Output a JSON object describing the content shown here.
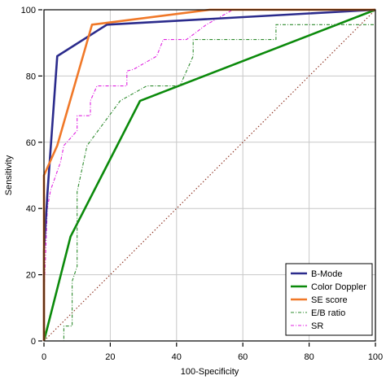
{
  "chart_data": {
    "type": "line",
    "title": "",
    "xlabel": "100-Specificity",
    "ylabel": "Sensitivity",
    "xlim": [
      0,
      100
    ],
    "ylim": [
      0,
      100
    ],
    "xticks": [
      0,
      20,
      40,
      60,
      80,
      100
    ],
    "yticks": [
      0,
      20,
      40,
      60,
      80,
      100
    ],
    "grid": true,
    "legend_position": "bottom-right",
    "series": [
      {
        "name": "B-Mode",
        "color": "#2b2b8c",
        "style": "solid",
        "points": [
          [
            0,
            0
          ],
          [
            0,
            27
          ],
          [
            1,
            44
          ],
          [
            4,
            86
          ],
          [
            19,
            95.5
          ],
          [
            100,
            100
          ]
        ]
      },
      {
        "name": "Color Doppler",
        "color": "#0b8a0b",
        "style": "solid",
        "points": [
          [
            0,
            0
          ],
          [
            8,
            31.5
          ],
          [
            29,
            72.5
          ],
          [
            100,
            100
          ]
        ]
      },
      {
        "name": "SE score",
        "color": "#f07828",
        "style": "solid",
        "points": [
          [
            0,
            0
          ],
          [
            0,
            50
          ],
          [
            4,
            59
          ],
          [
            14.5,
            95.5
          ],
          [
            50,
            100
          ],
          [
            100,
            100
          ]
        ]
      },
      {
        "name": "E/B ratio",
        "color": "#2e8b2e",
        "style": "dashdot",
        "points": [
          [
            0,
            0
          ],
          [
            6,
            0
          ],
          [
            6,
            4.5
          ],
          [
            8.5,
            4.5
          ],
          [
            8.5,
            18
          ],
          [
            10,
            22.5
          ],
          [
            10,
            45
          ],
          [
            13,
            59
          ],
          [
            23,
            72.5
          ],
          [
            31,
            77
          ],
          [
            41,
            77
          ],
          [
            45,
            86
          ],
          [
            45,
            91
          ],
          [
            70,
            91
          ],
          [
            70,
            95.5
          ],
          [
            100,
            95.5
          ]
        ]
      },
      {
        "name": "SR",
        "color": "#e020e0",
        "style": "dashdot",
        "points": [
          [
            0,
            0
          ],
          [
            0,
            13
          ],
          [
            1,
            40
          ],
          [
            2,
            45.5
          ],
          [
            5,
            54
          ],
          [
            6,
            59
          ],
          [
            10,
            63.5
          ],
          [
            10,
            68
          ],
          [
            14,
            68
          ],
          [
            14,
            72.5
          ],
          [
            16,
            77
          ],
          [
            25,
            77
          ],
          [
            25,
            81.5
          ],
          [
            27,
            82
          ],
          [
            34,
            86
          ],
          [
            36,
            91
          ],
          [
            43,
            91
          ],
          [
            49,
            95.5
          ],
          [
            57,
            100
          ],
          [
            100,
            100
          ]
        ]
      },
      {
        "name": "",
        "color": "#8b2d1c",
        "style": "dotted",
        "points": [
          [
            0,
            0
          ],
          [
            100,
            100
          ]
        ]
      }
    ]
  }
}
